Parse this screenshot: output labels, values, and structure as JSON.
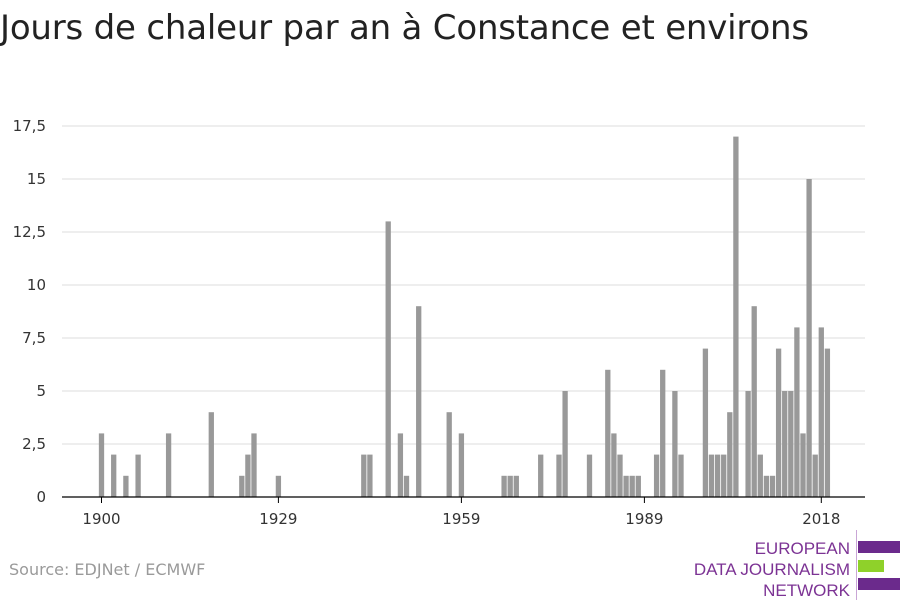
{
  "title": "Jours de chaleur par an à Constance et environs",
  "source": "Source: EDJNet / ECMWF",
  "brand": {
    "lines": [
      "EUROPEAN",
      "DATA JOURNALISM",
      "NETWORK"
    ],
    "colors": {
      "purple": "#6b2a8c",
      "green": "#8fd12a"
    }
  },
  "colors": {
    "bar": "#999999",
    "grid": "#dddddd",
    "axis": "#000000"
  },
  "chart_data": {
    "type": "bar",
    "title": "Jours de chaleur par an à Constance et environs",
    "xlabel": "",
    "ylabel": "",
    "x": [
      1900,
      1901,
      1902,
      1903,
      1904,
      1905,
      1906,
      1907,
      1908,
      1909,
      1910,
      1911,
      1912,
      1913,
      1914,
      1915,
      1916,
      1917,
      1918,
      1919,
      1920,
      1921,
      1922,
      1923,
      1924,
      1925,
      1926,
      1927,
      1928,
      1929,
      1930,
      1931,
      1932,
      1933,
      1934,
      1935,
      1936,
      1937,
      1938,
      1939,
      1940,
      1941,
      1942,
      1943,
      1944,
      1945,
      1946,
      1947,
      1948,
      1949,
      1950,
      1951,
      1952,
      1953,
      1954,
      1955,
      1956,
      1957,
      1958,
      1959,
      1960,
      1961,
      1962,
      1963,
      1964,
      1965,
      1966,
      1967,
      1968,
      1969,
      1970,
      1971,
      1972,
      1973,
      1974,
      1975,
      1976,
      1977,
      1978,
      1979,
      1980,
      1981,
      1982,
      1983,
      1984,
      1985,
      1986,
      1987,
      1988,
      1989,
      1990,
      1991,
      1992,
      1993,
      1994,
      1995,
      1996,
      1997,
      1998,
      1999,
      2000,
      2001,
      2002,
      2003,
      2004,
      2005,
      2006,
      2007,
      2008,
      2009,
      2010,
      2011,
      2012,
      2013,
      2014,
      2015,
      2016,
      2017,
      2018,
      2019
    ],
    "values": [
      3,
      0,
      2,
      0,
      1,
      0,
      2,
      0,
      0,
      0,
      0,
      3,
      0,
      0,
      0,
      0,
      0,
      0,
      4,
      0,
      0,
      0,
      0,
      1,
      2,
      3,
      0,
      0,
      0,
      1,
      0,
      0,
      0,
      0,
      0,
      0,
      0,
      0,
      0,
      0,
      0,
      0,
      0,
      2,
      2,
      0,
      0,
      13,
      0,
      3,
      1,
      0,
      9,
      0,
      0,
      0,
      0,
      4,
      0,
      3,
      0,
      0,
      0,
      0,
      0,
      0,
      1,
      1,
      1,
      0,
      0,
      0,
      2,
      0,
      0,
      2,
      5,
      0,
      0,
      0,
      2,
      0,
      0,
      6,
      3,
      2,
      1,
      1,
      1,
      0,
      0,
      2,
      6,
      0,
      5,
      2,
      0,
      0,
      0,
      7,
      2,
      2,
      2,
      4,
      17,
      0,
      5,
      9,
      2,
      1,
      1,
      7,
      5,
      5,
      8,
      3,
      15,
      2,
      8,
      7
    ],
    "ylim": [
      0,
      17.5
    ],
    "y_ticks": [
      "0",
      "2,5",
      "5",
      "7,5",
      "10",
      "12,5",
      "15",
      "17,5"
    ],
    "x_ticks": [
      1900,
      1929,
      1959,
      1989,
      2018
    ],
    "grid": true
  }
}
